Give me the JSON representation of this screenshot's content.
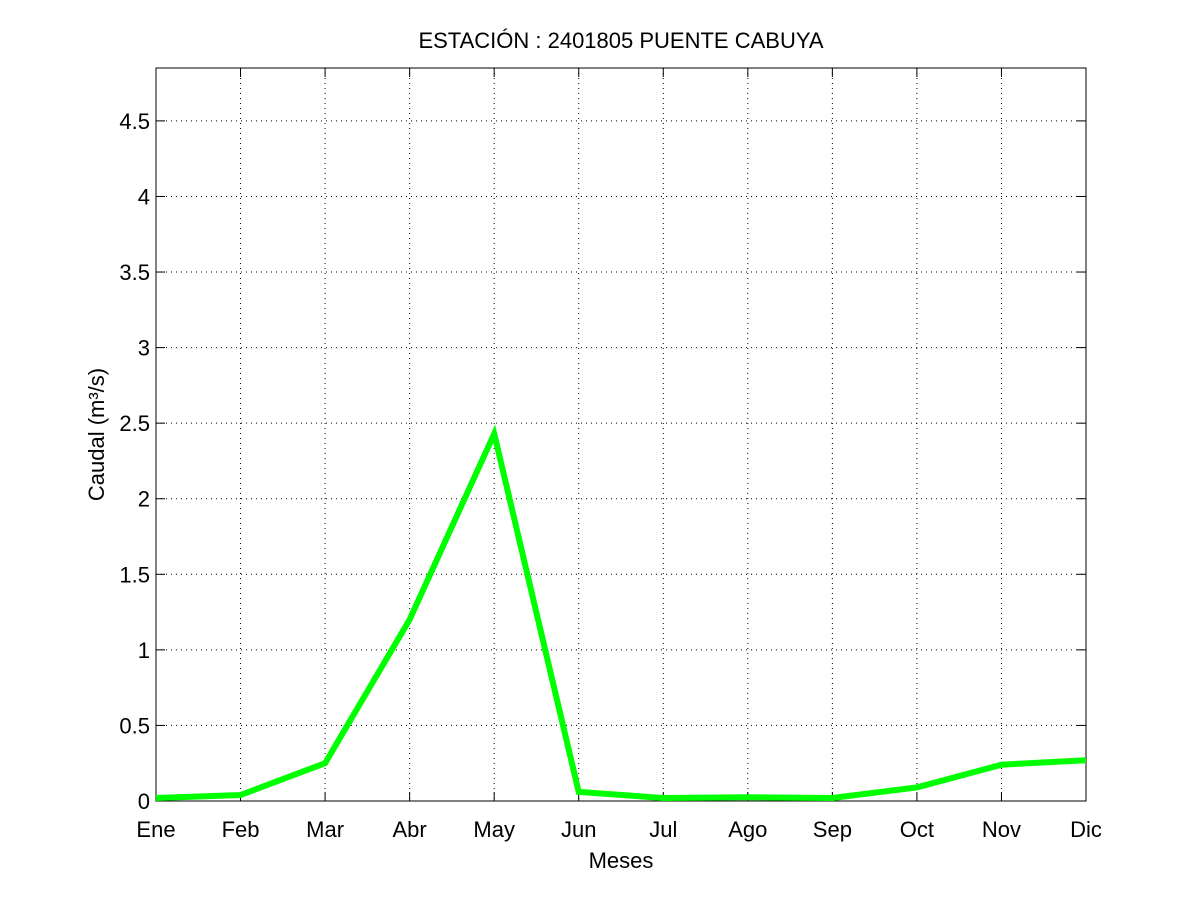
{
  "chart_data": {
    "type": "line",
    "title": "ESTACIÓN :  2401805  PUENTE CABUYA",
    "xlabel": "Meses",
    "ylabel": "Caudal (m³/s)",
    "categories": [
      "Ene",
      "Feb",
      "Mar",
      "Abr",
      "May",
      "Jun",
      "Jul",
      "Ago",
      "Sep",
      "Oct",
      "Nov",
      "Dic"
    ],
    "series": [
      {
        "values": [
          0.02,
          0.04,
          0.25,
          1.2,
          2.43,
          0.06,
          0.02,
          0.025,
          0.02,
          0.09,
          0.24,
          0.27
        ],
        "color": "#00ff00"
      }
    ],
    "ylim": [
      0,
      4.85
    ],
    "yticks": [
      0,
      0.5,
      1,
      1.5,
      2,
      2.5,
      3,
      3.5,
      4,
      4.5
    ],
    "yticklabels": [
      "0",
      "0.5",
      "1",
      "1.5",
      "2",
      "2.5",
      "3",
      "3.5",
      "4",
      "4.5"
    ],
    "grid": true,
    "legend": "none"
  }
}
